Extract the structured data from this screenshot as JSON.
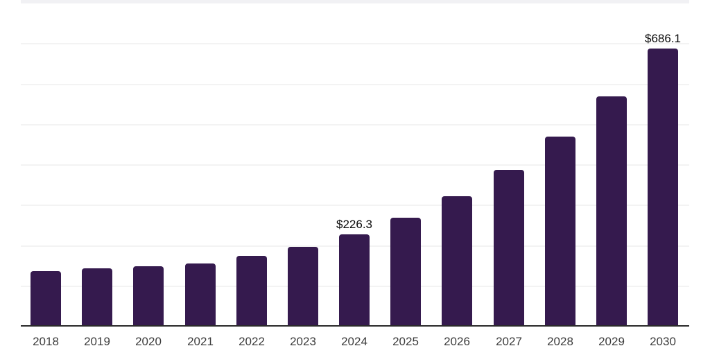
{
  "chart_data": {
    "type": "bar",
    "title": "",
    "xlabel": "",
    "ylabel": "",
    "categories": [
      "2018",
      "2019",
      "2020",
      "2021",
      "2022",
      "2023",
      "2024",
      "2025",
      "2026",
      "2027",
      "2028",
      "2029",
      "2030"
    ],
    "values": [
      136,
      142,
      148,
      154,
      173,
      196,
      226.3,
      268,
      321,
      386,
      469,
      568,
      686.1
    ],
    "data_labels": {
      "2024": "$226.3",
      "2030": "$686.1"
    },
    "value_prefix": "$",
    "ylim": [
      0,
      800
    ],
    "gridline_step": 100,
    "grid": "horizontal",
    "legend": "none",
    "colors": {
      "bar": "#351A4E",
      "grid": "#F3F3F3",
      "grid_top_band": "#F1F1F4",
      "axis": "#2A2A2A",
      "tick_label": "#3C3C3C",
      "value_label": "#0A0A0A",
      "background": "#FFFFFF"
    }
  }
}
